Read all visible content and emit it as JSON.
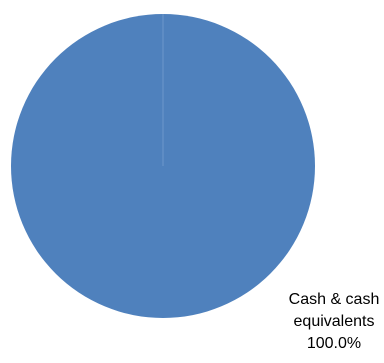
{
  "chart_data": {
    "type": "pie",
    "slices": [
      {
        "label_lines": [
          "Cash & cash",
          "equivalents"
        ],
        "value": 100.0,
        "value_label": "100.0%",
        "color": "#4F81BD"
      }
    ]
  }
}
